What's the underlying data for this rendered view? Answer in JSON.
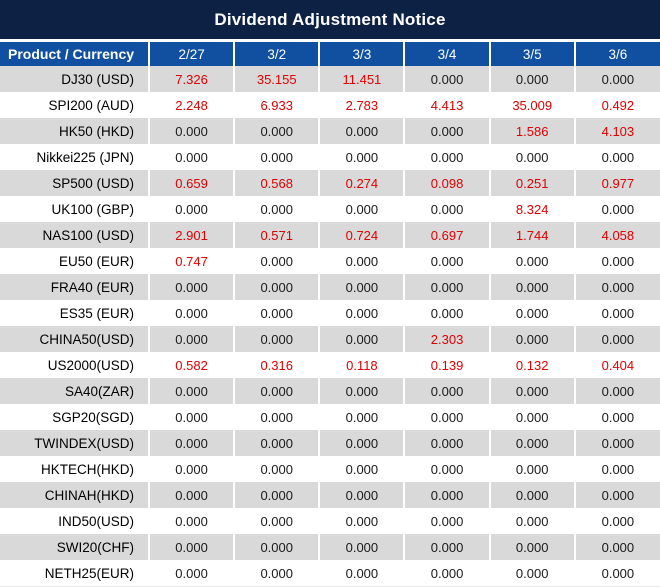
{
  "title": "Dividend Adjustment Notice",
  "colors": {
    "title_bar_bg": "#0d2144",
    "header_bg": "#1150a0",
    "row_alt_bg": "#d9d9d9",
    "row_bg": "#ffffff",
    "header_text": "#ffffff",
    "value_red": "#e00000",
    "value_black": "#1a1a1a",
    "cell_separator": "#ffffff"
  },
  "chart_data": {
    "type": "table",
    "title": "Dividend Adjustment Notice",
    "product_header": "Product / Currency",
    "date_columns": [
      "2/27",
      "3/2",
      "3/3",
      "3/4",
      "3/5",
      "3/6"
    ],
    "rows": [
      {
        "product": "DJ30 (USD)",
        "values": [
          "7.326",
          "35.155",
          "11.451",
          "0.000",
          "0.000",
          "0.000"
        ],
        "red": [
          1,
          1,
          1,
          0,
          0,
          0
        ]
      },
      {
        "product": "SPI200 (AUD)",
        "values": [
          "2.248",
          "6.933",
          "2.783",
          "4.413",
          "35.009",
          "0.492"
        ],
        "red": [
          1,
          1,
          1,
          1,
          1,
          1
        ]
      },
      {
        "product": "HK50 (HKD)",
        "values": [
          "0.000",
          "0.000",
          "0.000",
          "0.000",
          "1.586",
          "4.103"
        ],
        "red": [
          0,
          0,
          0,
          0,
          1,
          1
        ]
      },
      {
        "product": "Nikkei225 (JPN)",
        "values": [
          "0.000",
          "0.000",
          "0.000",
          "0.000",
          "0.000",
          "0.000"
        ],
        "red": [
          0,
          0,
          0,
          0,
          0,
          0
        ]
      },
      {
        "product": "SP500 (USD)",
        "values": [
          "0.659",
          "0.568",
          "0.274",
          "0.098",
          "0.251",
          "0.977"
        ],
        "red": [
          1,
          1,
          1,
          1,
          1,
          1
        ]
      },
      {
        "product": "UK100 (GBP)",
        "values": [
          "0.000",
          "0.000",
          "0.000",
          "0.000",
          "8.324",
          "0.000"
        ],
        "red": [
          0,
          0,
          0,
          0,
          1,
          0
        ]
      },
      {
        "product": "NAS100 (USD)",
        "values": [
          "2.901",
          "0.571",
          "0.724",
          "0.697",
          "1.744",
          "4.058"
        ],
        "red": [
          1,
          1,
          1,
          1,
          1,
          1
        ]
      },
      {
        "product": "EU50 (EUR)",
        "values": [
          "0.747",
          "0.000",
          "0.000",
          "0.000",
          "0.000",
          "0.000"
        ],
        "red": [
          1,
          0,
          0,
          0,
          0,
          0
        ]
      },
      {
        "product": "FRA40 (EUR)",
        "values": [
          "0.000",
          "0.000",
          "0.000",
          "0.000",
          "0.000",
          "0.000"
        ],
        "red": [
          0,
          0,
          0,
          0,
          0,
          0
        ]
      },
      {
        "product": "ES35 (EUR)",
        "values": [
          "0.000",
          "0.000",
          "0.000",
          "0.000",
          "0.000",
          "0.000"
        ],
        "red": [
          0,
          0,
          0,
          0,
          0,
          0
        ]
      },
      {
        "product": "CHINA50(USD)",
        "values": [
          "0.000",
          "0.000",
          "0.000",
          "2.303",
          "0.000",
          "0.000"
        ],
        "red": [
          0,
          0,
          0,
          1,
          0,
          0
        ]
      },
      {
        "product": "US2000(USD)",
        "values": [
          "0.582",
          "0.316",
          "0.118",
          "0.139",
          "0.132",
          "0.404"
        ],
        "red": [
          1,
          1,
          1,
          1,
          1,
          1
        ]
      },
      {
        "product": "SA40(ZAR)",
        "values": [
          "0.000",
          "0.000",
          "0.000",
          "0.000",
          "0.000",
          "0.000"
        ],
        "red": [
          0,
          0,
          0,
          0,
          0,
          0
        ]
      },
      {
        "product": "SGP20(SGD)",
        "values": [
          "0.000",
          "0.000",
          "0.000",
          "0.000",
          "0.000",
          "0.000"
        ],
        "red": [
          0,
          0,
          0,
          0,
          0,
          0
        ]
      },
      {
        "product": "TWINDEX(USD)",
        "values": [
          "0.000",
          "0.000",
          "0.000",
          "0.000",
          "0.000",
          "0.000"
        ],
        "red": [
          0,
          0,
          0,
          0,
          0,
          0
        ]
      },
      {
        "product": "HKTECH(HKD)",
        "values": [
          "0.000",
          "0.000",
          "0.000",
          "0.000",
          "0.000",
          "0.000"
        ],
        "red": [
          0,
          0,
          0,
          0,
          0,
          0
        ]
      },
      {
        "product": "CHINAH(HKD)",
        "values": [
          "0.000",
          "0.000",
          "0.000",
          "0.000",
          "0.000",
          "0.000"
        ],
        "red": [
          0,
          0,
          0,
          0,
          0,
          0
        ]
      },
      {
        "product": "IND50(USD)",
        "values": [
          "0.000",
          "0.000",
          "0.000",
          "0.000",
          "0.000",
          "0.000"
        ],
        "red": [
          0,
          0,
          0,
          0,
          0,
          0
        ]
      },
      {
        "product": "SWI20(CHF)",
        "values": [
          "0.000",
          "0.000",
          "0.000",
          "0.000",
          "0.000",
          "0.000"
        ],
        "red": [
          0,
          0,
          0,
          0,
          0,
          0
        ]
      },
      {
        "product": "NETH25(EUR)",
        "values": [
          "0.000",
          "0.000",
          "0.000",
          "0.000",
          "0.000",
          "0.000"
        ],
        "red": [
          0,
          0,
          0,
          0,
          0,
          0
        ]
      }
    ]
  }
}
